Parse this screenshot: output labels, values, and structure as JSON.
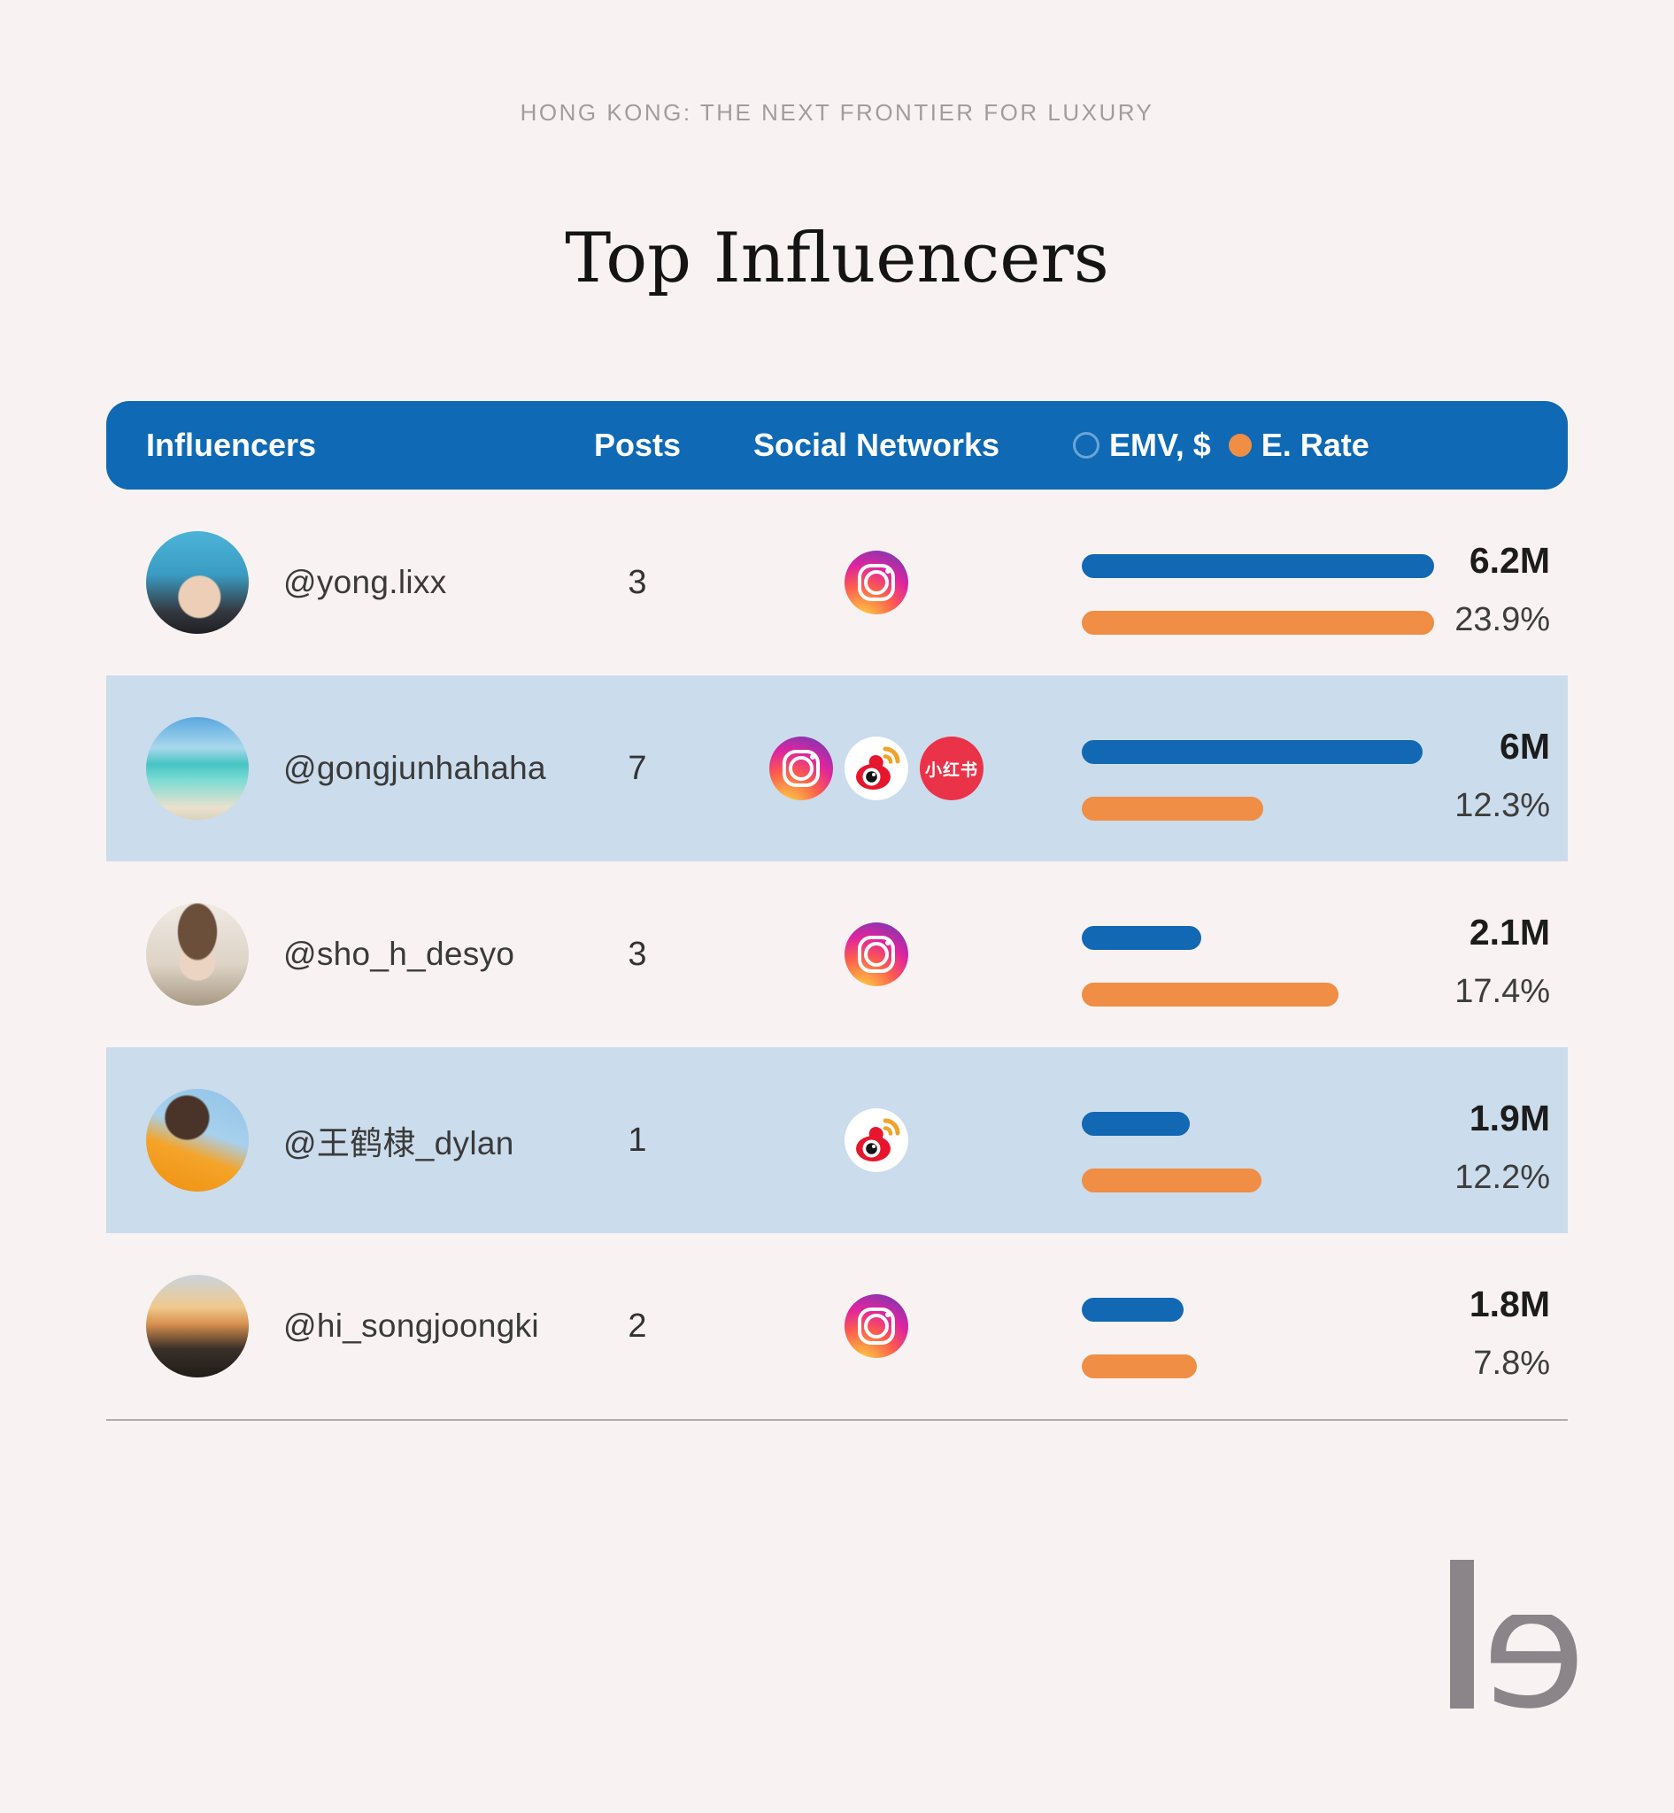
{
  "eyebrow": "HONG KONG: THE NEXT FRONTIER FOR LUXURY",
  "title": "Top Influencers",
  "header": {
    "influencers": "Influencers",
    "posts": "Posts",
    "social": "Social Networks",
    "legend_emv": "EMV, $",
    "legend_rate": "E. Rate"
  },
  "networks": {
    "xiaohongshu_label": "小红书"
  },
  "logo": {
    "glyph": "e"
  },
  "colors": {
    "header_bg": "#0f69b4",
    "emv_bar": "#1268b3",
    "rate_bar": "#ef8e44",
    "row_highlight": "#cbdcec",
    "background": "#f8f3f2"
  },
  "rows": [
    {
      "handle": "@yong.lixx",
      "posts": "3",
      "networks": [
        "instagram"
      ],
      "emv": "6.2M",
      "rate": "23.9%",
      "emv_bar_pct": 100,
      "rate_bar_pct": 100,
      "highlighted": false,
      "avatar_desc": "portrait with blue hair"
    },
    {
      "handle": "@gongjunhahaha",
      "posts": "7",
      "networks": [
        "instagram",
        "weibo",
        "xiaohongshu"
      ],
      "emv": "6M",
      "rate": "12.3%",
      "emv_bar_pct": 96.8,
      "rate_bar_pct": 51.5,
      "highlighted": true,
      "avatar_desc": "person standing on a beach"
    },
    {
      "handle": "@sho_h_desyo",
      "posts": "3",
      "networks": [
        "instagram"
      ],
      "emv": "2.1M",
      "rate": "17.4%",
      "emv_bar_pct": 33.9,
      "rate_bar_pct": 72.8,
      "highlighted": false,
      "avatar_desc": "portrait in beige jacket"
    },
    {
      "handle": "@王鹤棣_dylan",
      "posts": "1",
      "networks": [
        "weibo"
      ],
      "emv": "1.9M",
      "rate": "12.2%",
      "emv_bar_pct": 30.6,
      "rate_bar_pct": 51.0,
      "highlighted": true,
      "avatar_desc": "person in orange outfit against blue sky"
    },
    {
      "handle": "@hi_songjoongki",
      "posts": "2",
      "networks": [
        "instagram"
      ],
      "emv": "1.8M",
      "rate": "7.8%",
      "emv_bar_pct": 29.0,
      "rate_bar_pct": 32.6,
      "highlighted": false,
      "avatar_desc": "sunset bridge scene"
    }
  ],
  "chart_data": {
    "type": "table",
    "title": "Top Influencers",
    "subtitle": "HONG KONG: THE NEXT FRONTIER FOR LUXURY",
    "columns": [
      "Influencers",
      "Posts",
      "Social Networks",
      "EMV, $",
      "E. Rate"
    ],
    "legend": [
      {
        "label": "EMV, $",
        "color": "#1268b3"
      },
      {
        "label": "E. Rate",
        "color": "#ef8e44"
      }
    ],
    "rows": [
      {
        "influencer": "@yong.lixx",
        "posts": 3,
        "networks": [
          "Instagram"
        ],
        "emv_usd": 6200000,
        "emv_label": "6.2M",
        "engagement_rate_pct": 23.9
      },
      {
        "influencer": "@gongjunhahaha",
        "posts": 7,
        "networks": [
          "Instagram",
          "Weibo",
          "Xiaohongshu"
        ],
        "emv_usd": 6000000,
        "emv_label": "6M",
        "engagement_rate_pct": 12.3
      },
      {
        "influencer": "@sho_h_desyo",
        "posts": 3,
        "networks": [
          "Instagram"
        ],
        "emv_usd": 2100000,
        "emv_label": "2.1M",
        "engagement_rate_pct": 17.4
      },
      {
        "influencer": "@王鹤棣_dylan",
        "posts": 1,
        "networks": [
          "Weibo"
        ],
        "emv_usd": 1900000,
        "emv_label": "1.9M",
        "engagement_rate_pct": 12.2
      },
      {
        "influencer": "@hi_songjoongki",
        "posts": 2,
        "networks": [
          "Instagram"
        ],
        "emv_usd": 1800000,
        "emv_label": "1.8M",
        "engagement_rate_pct": 7.8
      }
    ],
    "bar_scale": {
      "emv_max": 6200000,
      "rate_max_pct": 23.9
    }
  }
}
